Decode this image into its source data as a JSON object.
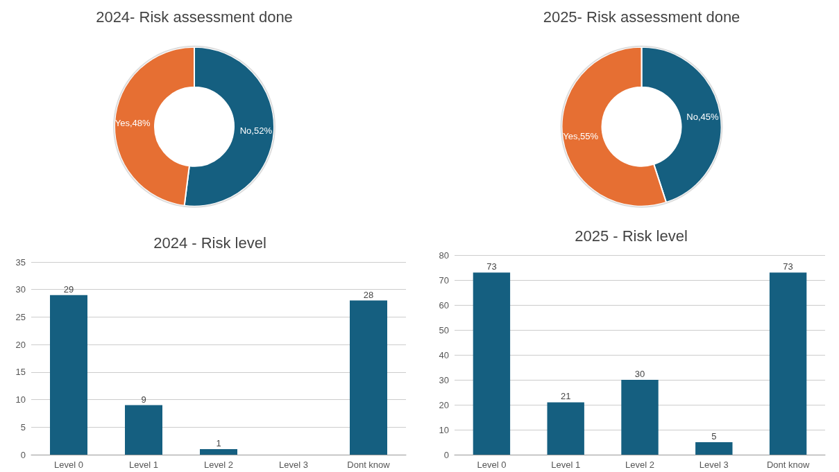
{
  "chart_data": [
    {
      "type": "donut",
      "title": "2024- Risk assessment done",
      "categories": [
        "No",
        "Yes"
      ],
      "values": [
        52,
        48
      ],
      "colors": [
        "#155f80",
        "#e66f33"
      ],
      "value_labels": [
        "52%",
        "48%"
      ],
      "legend": false
    },
    {
      "type": "donut",
      "title": "2025- Risk assessment done",
      "categories": [
        "No",
        "Yes"
      ],
      "values": [
        45,
        55
      ],
      "colors": [
        "#155f80",
        "#e66f33"
      ],
      "value_labels": [
        "45%",
        "55%"
      ],
      "legend": false
    },
    {
      "type": "bar",
      "title": "2024 - Risk level",
      "categories": [
        "Level 0",
        "Level 1",
        "Level 2",
        "Level 3",
        "Dont know"
      ],
      "values": [
        29,
        9,
        1,
        0,
        28
      ],
      "value_labels": [
        "29",
        "9",
        "1",
        null,
        "28"
      ],
      "color": "#155f80",
      "ylim": [
        0,
        35
      ],
      "yticks": [
        0,
        5,
        10,
        15,
        20,
        25,
        30,
        35
      ],
      "grid": "y",
      "legend": false
    },
    {
      "type": "bar",
      "title": "2025 - Risk level",
      "categories": [
        "Level 0",
        "Level 1",
        "Level 2",
        "Level 3",
        "Dont know"
      ],
      "values": [
        73,
        21,
        30,
        5,
        73
      ],
      "data_labels": true,
      "color": "#155f80",
      "ylim": [
        0,
        80
      ],
      "yticks": [
        0,
        10,
        20,
        30,
        40,
        50,
        60,
        70,
        80
      ],
      "grid": "y",
      "legend": false
    }
  ]
}
